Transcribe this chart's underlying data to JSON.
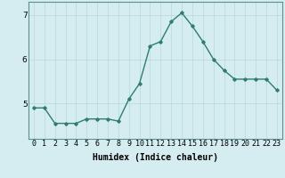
{
  "x": [
    0,
    1,
    2,
    3,
    4,
    5,
    6,
    7,
    8,
    9,
    10,
    11,
    12,
    13,
    14,
    15,
    16,
    17,
    18,
    19,
    20,
    21,
    22,
    23
  ],
  "y": [
    4.9,
    4.9,
    4.55,
    4.55,
    4.55,
    4.65,
    4.65,
    4.65,
    4.6,
    5.1,
    5.45,
    6.3,
    6.4,
    6.85,
    7.05,
    6.75,
    6.4,
    6.0,
    5.75,
    5.55,
    5.55,
    5.55,
    5.55,
    5.3
  ],
  "line_color": "#2e7d6e",
  "marker": "D",
  "marker_size": 1.8,
  "line_width": 1.0,
  "xlabel": "Humidex (Indice chaleur)",
  "ylim": [
    4.2,
    7.3
  ],
  "xlim": [
    -0.5,
    23.5
  ],
  "yticks": [
    5,
    6,
    7
  ],
  "xtick_labels": [
    "0",
    "1",
    "2",
    "3",
    "4",
    "5",
    "6",
    "7",
    "8",
    "9",
    "10",
    "11",
    "12",
    "13",
    "14",
    "15",
    "16",
    "17",
    "18",
    "19",
    "20",
    "21",
    "22",
    "23"
  ],
  "bg_color": "#d5edf0",
  "grid_color": "#b8d8d8",
  "xlabel_fontsize": 7.0,
  "tick_fontsize": 6.0,
  "ytick_fontsize": 6.5
}
